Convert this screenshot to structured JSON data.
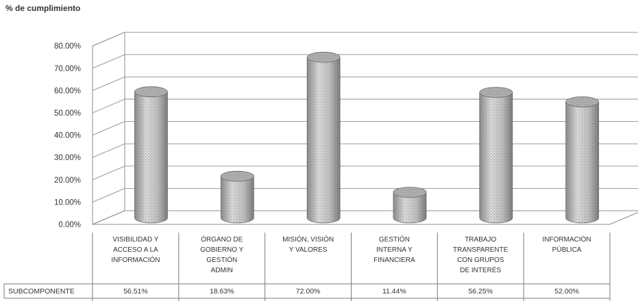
{
  "chart_data": {
    "type": "bar",
    "title": "% de cumplimiento",
    "categories": [
      [
        "VISIBILIDAD Y",
        "ACCESO A LA",
        "INFORMACIÓN"
      ],
      [
        "ÓRGANO DE",
        "GOBIERNO Y",
        "GESTIÓN",
        "ADMIN"
      ],
      [
        "MISIÓN, VISIÓN",
        "Y VALORES"
      ],
      [
        "GESTIÓN",
        "INTERNA Y",
        "FINANCIERA"
      ],
      [
        "TRABAJO",
        "TRANSPARENTE",
        "CON GRUPOS",
        "DE INTERÉS"
      ],
      [
        "INFORMACIÓN",
        "PÚBLICA"
      ]
    ],
    "series": [
      {
        "name": "SUBCOMPONENTE",
        "values": [
          56.51,
          18.63,
          72.0,
          11.44,
          56.25,
          52.0
        ],
        "labels": [
          "56.51%",
          "18.63%",
          "72.00%",
          "11.44%",
          "56.25%",
          "52.00%"
        ]
      }
    ],
    "y_ticks": [
      "0.00%",
      "10.00%",
      "20.00%",
      "30.00%",
      "40.00%",
      "50.00%",
      "60.00%",
      "70.00%",
      "80.00%"
    ],
    "ylim": [
      0,
      80
    ],
    "grid": true,
    "legend": "data-table",
    "shape": "3d-cylinder",
    "colors": {
      "bar_fill": "#c9c9c9",
      "bar_dark": "#8f8f8f",
      "bar_top": "#b4b4b4",
      "gridline": "#8c8c8c",
      "border": "#7a7a7a"
    }
  }
}
